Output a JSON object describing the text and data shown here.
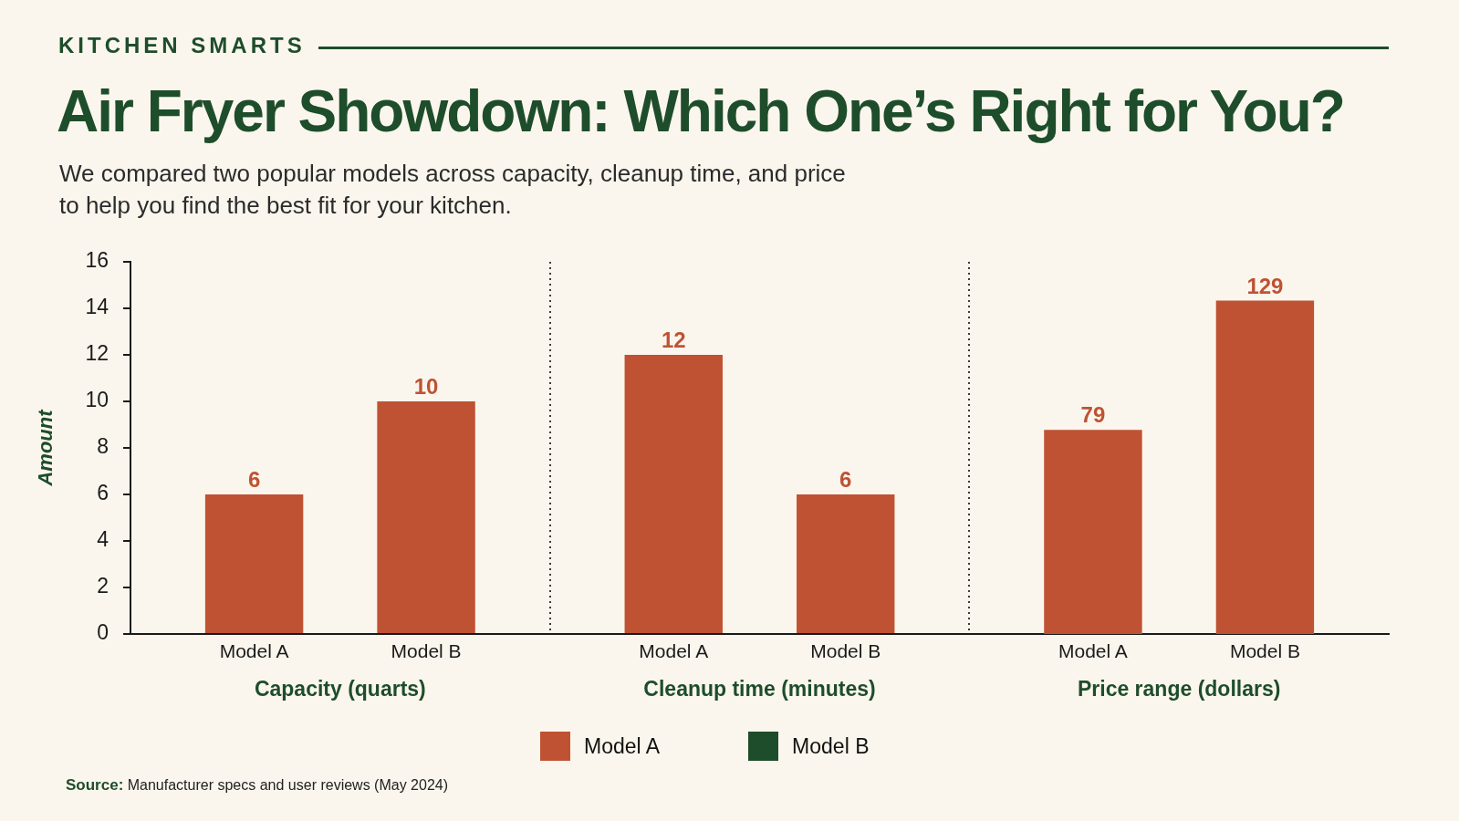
{
  "chart_data": {
    "type": "bar",
    "title": "Air Fryer Showdown: Which One’s Right for You?",
    "subtitle": "We compared two popular models across capacity, cleanup time, and price to help you find the best fit for your kitchen.",
    "ylabel": "Amount",
    "categories": [
      "Capacity (quarts)",
      "Cleanup time (minutes)",
      "Price range (dollars)"
    ],
    "series": [
      {
        "name": "Model A",
        "color": "#bf5233",
        "values": [
          6,
          12,
          null
        ]
      },
      {
        "name": "Model B",
        "color": "#1e4d2b",
        "colors": [
          "#bf5233",
          "#bf5233",
          "#bf5233"
        ],
        "values": [
          10,
          6,
          null
        ]
      },
      {
        "name": "Model A",
        "color": "#bf5233",
        "axis": "y2",
        "values": [
          null,
          null,
          79
        ]
      },
      {
        "name": "Model B",
        "color": "#1e4d2b",
        "colors": [
          "#bf5233",
          "#bf5233",
          "#bf5233"
        ],
        "axis": "y2",
        "values": [
          null,
          null,
          129
        ]
      }
    ],
    "ylim": [
      0,
      16
    ],
    "yticks": [
      0,
      2,
      4,
      6,
      8,
      10,
      12,
      14,
      16
    ],
    "y2lim": [
      0,
      144
    ],
    "grid": "x",
    "legend": "bottom",
    "data_labels": true,
    "annotations": [
      "KITCHEN SMARTS",
      "Source: Manufacturer specs and user reviews (May 2024)"
    ]
  }
}
